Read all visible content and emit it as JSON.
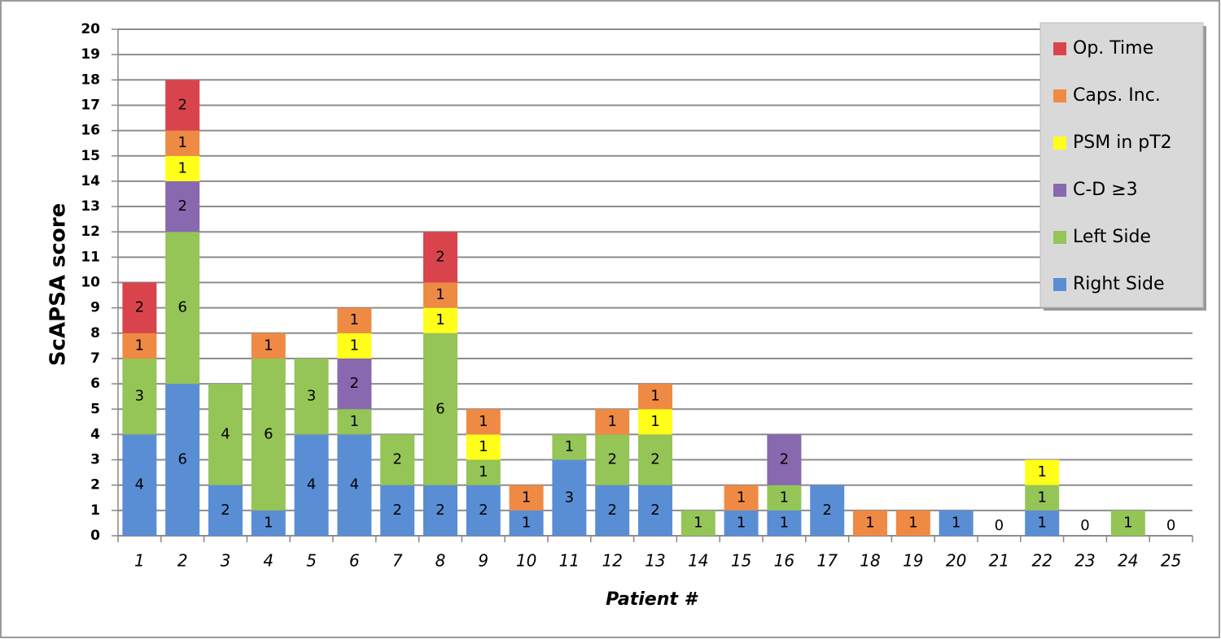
{
  "chart_data": {
    "type": "stacked-bar",
    "y_label": "ScAPSA score",
    "x_label": "Patient #",
    "categories": [
      "1",
      "2",
      "3",
      "4",
      "5",
      "6",
      "7",
      "8",
      "9",
      "10",
      "11",
      "12",
      "13",
      "14",
      "15",
      "16",
      "17",
      "18",
      "19",
      "20",
      "21",
      "22",
      "23",
      "24",
      "25"
    ],
    "series": [
      {
        "name": "Right Side",
        "color": "#5a8ed4",
        "values": [
          4,
          6,
          2,
          1,
          4,
          4,
          2,
          2,
          2,
          1,
          3,
          2,
          2,
          null,
          1,
          1,
          2,
          null,
          null,
          1,
          0,
          1,
          0,
          null,
          0
        ]
      },
      {
        "name": "Left Side",
        "color": "#95c457",
        "values": [
          3,
          6,
          4,
          6,
          3,
          1,
          2,
          6,
          1,
          null,
          1,
          2,
          2,
          1,
          null,
          1,
          null,
          null,
          null,
          null,
          null,
          1,
          null,
          1,
          null
        ]
      },
      {
        "name": "C-D ≥3",
        "color": "#8868ae",
        "values": [
          null,
          2,
          null,
          null,
          null,
          2,
          null,
          null,
          null,
          null,
          null,
          null,
          null,
          null,
          null,
          2,
          null,
          null,
          null,
          null,
          null,
          null,
          null,
          null,
          null
        ]
      },
      {
        "name": "PSM in pT2",
        "color": "#ffff1a",
        "values": [
          null,
          1,
          null,
          null,
          null,
          1,
          null,
          1,
          1,
          null,
          null,
          null,
          1,
          null,
          null,
          null,
          null,
          null,
          null,
          null,
          null,
          1,
          null,
          null,
          null
        ]
      },
      {
        "name": "Caps. Inc.",
        "color": "#ef8a44",
        "values": [
          1,
          1,
          null,
          1,
          null,
          1,
          null,
          1,
          1,
          1,
          null,
          1,
          1,
          null,
          1,
          null,
          null,
          1,
          1,
          null,
          null,
          null,
          null,
          null,
          null
        ]
      },
      {
        "name": "Op. Time",
        "color": "#d9444c",
        "values": [
          2,
          2,
          null,
          null,
          null,
          null,
          null,
          2,
          null,
          null,
          null,
          null,
          null,
          null,
          null,
          null,
          null,
          null,
          null,
          null,
          null,
          null,
          null,
          null,
          null
        ]
      }
    ],
    "ylim": [
      0,
      20
    ],
    "yticks": [
      0,
      1,
      2,
      3,
      4,
      5,
      6,
      7,
      8,
      9,
      10,
      11,
      12,
      13,
      14,
      15,
      16,
      17,
      18,
      19,
      20
    ],
    "grid": true,
    "legend": "top-right"
  }
}
